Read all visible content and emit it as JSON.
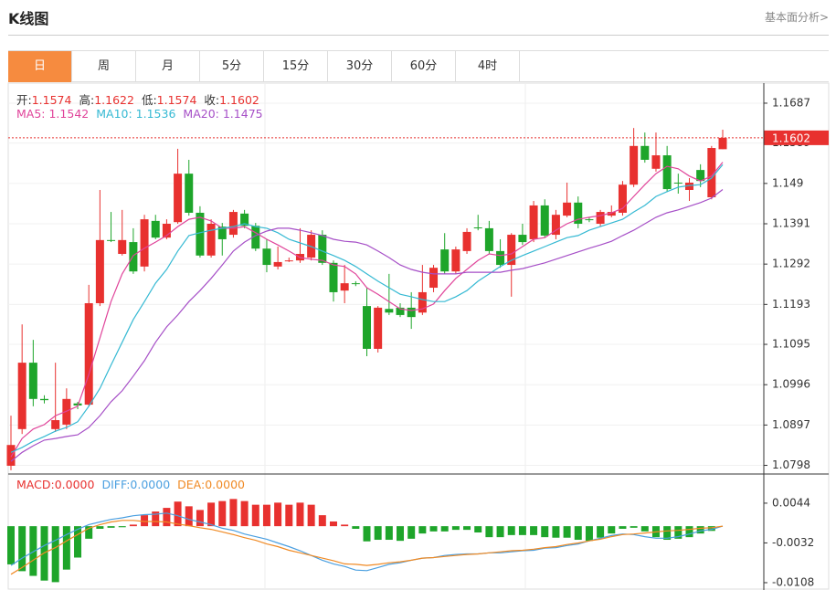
{
  "header": {
    "title": "K线图",
    "link": "基本面分析>"
  },
  "tabs": {
    "items": [
      "日",
      "周",
      "月",
      "5分",
      "15分",
      "30分",
      "60分",
      "4时"
    ],
    "active": 0
  },
  "chart_data": [
    {
      "type": "candlestick",
      "ohlc_labels": {
        "open": "开:",
        "high": "高:",
        "low": "低:",
        "close": "收:"
      },
      "up_color": "#e8312f",
      "down_color": "#1ea52a",
      "candles": {
        "open": [
          1.0797,
          1.0887,
          1.105,
          1.0961,
          1.0887,
          1.0898,
          1.095,
          1.0947,
          1.1196,
          1.1351,
          1.1317,
          1.1346,
          1.1286,
          1.1398,
          1.1357,
          1.1395,
          1.1514,
          1.1418,
          1.1313,
          1.1384,
          1.1364,
          1.1416,
          1.1386,
          1.133,
          1.1286,
          1.1299,
          1.1301,
          1.1308,
          1.1364,
          1.1295,
          1.1227,
          1.1245,
          1.1189,
          1.1084,
          1.1182,
          1.1185,
          1.1185,
          1.1173,
          1.1234,
          1.1328,
          1.1274,
          1.1324,
          1.1382,
          1.138,
          1.1324,
          1.129,
          1.1364,
          1.1353,
          1.1436,
          1.1364,
          1.1411,
          1.1443,
          1.1402,
          1.1391,
          1.1411,
          1.1418,
          1.1487,
          1.1582,
          1.1526,
          1.1559,
          1.1492,
          1.1474,
          1.1523,
          1.1456,
          1.1574
        ],
        "high": [
          1.092,
          1.1144,
          1.1106,
          1.097,
          1.105,
          1.0987,
          1.0954,
          1.1241,
          1.1474,
          1.142,
          1.1425,
          1.138,
          1.1413,
          1.1413,
          1.1402,
          1.1575,
          1.1548,
          1.1434,
          1.1402,
          1.1393,
          1.1425,
          1.1425,
          1.1393,
          1.1353,
          1.1335,
          1.1308,
          1.138,
          1.1375,
          1.1375,
          1.1301,
          1.129,
          1.125,
          1.1234,
          1.1189,
          1.1268,
          1.1196,
          1.1223,
          1.129,
          1.129,
          1.1368,
          1.1335,
          1.138,
          1.1413,
          1.1398,
          1.1353,
          1.1368,
          1.1391,
          1.1447,
          1.1451,
          1.1425,
          1.1492,
          1.1458,
          1.1407,
          1.1425,
          1.1436,
          1.1496,
          1.1626,
          1.1615,
          1.1615,
          1.1582,
          1.1514,
          1.1503,
          1.1537,
          1.1582,
          1.1622
        ],
        "low": [
          1.0786,
          1.0875,
          1.0943,
          1.095,
          1.088,
          1.0887,
          1.0936,
          1.0943,
          1.1189,
          1.1346,
          1.1313,
          1.1268,
          1.1274,
          1.1353,
          1.1353,
          1.1391,
          1.1411,
          1.1308,
          1.1308,
          1.1313,
          1.1357,
          1.138,
          1.1324,
          1.1272,
          1.1279,
          1.1297,
          1.1295,
          1.1301,
          1.129,
          1.12,
          1.1196,
          1.1238,
          1.1066,
          1.1075,
          1.1167,
          1.1162,
          1.1133,
          1.1167,
          1.1223,
          1.1268,
          1.1268,
          1.1317,
          1.1375,
          1.1317,
          1.1283,
          1.1212,
          1.1339,
          1.1346,
          1.1357,
          1.1353,
          1.1407,
          1.138,
          1.1395,
          1.1384,
          1.1407,
          1.1411,
          1.1481,
          1.1541,
          1.1519,
          1.1469,
          1.1465,
          1.1447,
          1.1481,
          1.1451,
          1.1574
        ],
        "close": [
          1.0848,
          1.105,
          1.0961,
          1.0958,
          1.0909,
          1.0961,
          1.0945,
          1.1196,
          1.1351,
          1.1349,
          1.1351,
          1.1274,
          1.1402,
          1.1357,
          1.1391,
          1.1514,
          1.1418,
          1.1313,
          1.1391,
          1.1353,
          1.142,
          1.1386,
          1.133,
          1.129,
          1.1297,
          1.1301,
          1.1317,
          1.1364,
          1.1295,
          1.1223,
          1.1245,
          1.1243,
          1.1084,
          1.1185,
          1.1173,
          1.1167,
          1.1162,
          1.1223,
          1.1283,
          1.1274,
          1.1328,
          1.1371,
          1.138,
          1.1324,
          1.129,
          1.1364,
          1.1346,
          1.1436,
          1.1362,
          1.1413,
          1.1443,
          1.1391,
          1.14,
          1.142,
          1.142,
          1.1487,
          1.1582,
          1.1548,
          1.1559,
          1.1476,
          1.149,
          1.1492,
          1.1496,
          1.1577,
          1.1602
        ]
      },
      "legend_separator": ": ",
      "series": [
        {
          "name": "MA5",
          "color": "#e0449a",
          "values": [
            1.0819,
            1.0864,
            1.0887,
            1.0898,
            1.092,
            1.0931,
            1.0943,
            1.1021,
            1.1111,
            1.12,
            1.1268,
            1.1313,
            1.1331,
            1.1346,
            1.1362,
            1.1384,
            1.1402,
            1.1407,
            1.1398,
            1.138,
            1.138,
            1.1384,
            1.1369,
            1.1353,
            1.1339,
            1.1324,
            1.1308,
            1.1304,
            1.1301,
            1.129,
            1.1286,
            1.1268,
            1.1234,
            1.1218,
            1.12,
            1.1182,
            1.1178,
            1.1182,
            1.1194,
            1.1227,
            1.1257,
            1.1279,
            1.1301,
            1.1317,
            1.1313,
            1.1317,
            1.1335,
            1.1353,
            1.1357,
            1.1375,
            1.1391,
            1.1402,
            1.1407,
            1.1411,
            1.1418,
            1.1429,
            1.1458,
            1.1487,
            1.1514,
            1.1532,
            1.1526,
            1.1508,
            1.1496,
            1.1508,
            1.1542
          ]
        },
        {
          "name": "MA10",
          "color": "#35b9d3",
          "values": [
            1.083,
            1.0842,
            1.0857,
            1.0869,
            1.0882,
            1.0891,
            1.0905,
            1.0943,
            1.0987,
            1.1044,
            1.11,
            1.1156,
            1.12,
            1.1245,
            1.1279,
            1.1324,
            1.1362,
            1.1369,
            1.1375,
            1.138,
            1.1384,
            1.1391,
            1.1384,
            1.138,
            1.1369,
            1.1353,
            1.1344,
            1.1335,
            1.1324,
            1.1313,
            1.1301,
            1.1286,
            1.1268,
            1.125,
            1.1234,
            1.1218,
            1.1212,
            1.1205,
            1.12,
            1.12,
            1.1212,
            1.1227,
            1.125,
            1.1268,
            1.1286,
            1.1301,
            1.1313,
            1.1324,
            1.1335,
            1.1346,
            1.1357,
            1.1362,
            1.1375,
            1.1384,
            1.1393,
            1.1402,
            1.142,
            1.1436,
            1.1458,
            1.147,
            1.1481,
            1.1485,
            1.1487,
            1.1503,
            1.1536
          ]
        },
        {
          "name": "MA20",
          "color": "#a64fc7",
          "values": [
            1.0808,
            1.083,
            1.0846,
            1.086,
            1.0864,
            1.0869,
            1.0873,
            1.0891,
            1.092,
            1.0954,
            1.0981,
            1.1017,
            1.1055,
            1.11,
            1.1138,
            1.1167,
            1.12,
            1.1227,
            1.1257,
            1.129,
            1.1324,
            1.1346,
            1.1362,
            1.1373,
            1.138,
            1.138,
            1.1375,
            1.1369,
            1.1362,
            1.1353,
            1.1348,
            1.1346,
            1.1339,
            1.1324,
            1.1308,
            1.129,
            1.1279,
            1.1272,
            1.1268,
            1.1268,
            1.1268,
            1.1272,
            1.1272,
            1.1272,
            1.1272,
            1.1277,
            1.1281,
            1.1288,
            1.1295,
            1.1304,
            1.1313,
            1.1322,
            1.1331,
            1.1339,
            1.1348,
            1.1362,
            1.1375,
            1.1391,
            1.1407,
            1.1418,
            1.1425,
            1.1434,
            1.1443,
            1.1454,
            1.1475
          ]
        }
      ],
      "ylim": [
        1.0779,
        1.1734
      ],
      "yticks": [
        1.1687,
        1.1589,
        1.149,
        1.1391,
        1.1292,
        1.1193,
        1.1095,
        1.0996,
        1.0897,
        1.0798
      ],
      "grid": true,
      "last_price_line": true
    },
    {
      "type": "macd",
      "up_color": "#e8312f",
      "down_color": "#1ea52a",
      "legend_separator": ":",
      "bars": {
        "name": "MACD",
        "current_label": "0.0000",
        "values": [
          -0.0073,
          -0.0086,
          -0.0095,
          -0.0104,
          -0.0107,
          -0.0083,
          -0.006,
          -0.0024,
          -0.0005,
          -0.0003,
          -0.0002,
          0.0003,
          0.0021,
          0.0028,
          0.0035,
          0.0047,
          0.0038,
          0.0031,
          0.0045,
          0.0048,
          0.0052,
          0.0048,
          0.0041,
          0.0041,
          0.0045,
          0.0041,
          0.0045,
          0.0041,
          0.0021,
          0.0009,
          0.0003,
          -0.0005,
          -0.0029,
          -0.0026,
          -0.0026,
          -0.0028,
          -0.0024,
          -0.0014,
          -0.001,
          -0.001,
          -0.0007,
          -0.0007,
          -0.0012,
          -0.0021,
          -0.0021,
          -0.0017,
          -0.0017,
          -0.0017,
          -0.0021,
          -0.0022,
          -0.0022,
          -0.0026,
          -0.0028,
          -0.0022,
          -0.0014,
          -0.0005,
          -0.0003,
          -0.001,
          -0.0021,
          -0.0026,
          -0.0024,
          -0.0021,
          -0.0014,
          -0.0009,
          0
        ]
      },
      "series": [
        {
          "name": "DIFF",
          "color": "#4a9fe0",
          "current_label": "0.0000",
          "values": [
            -0.0075,
            -0.0061,
            -0.0049,
            -0.0037,
            -0.0027,
            -0.0016,
            -0.0006,
            0.0003,
            0.0008,
            0.0013,
            0.0016,
            0.002,
            0.0022,
            0.0023,
            0.0025,
            0.002,
            0.0013,
            0.0008,
            0.0003,
            -0.0004,
            -0.0008,
            -0.0015,
            -0.002,
            -0.0025,
            -0.0032,
            -0.0039,
            -0.0047,
            -0.0056,
            -0.0065,
            -0.0072,
            -0.0077,
            -0.0084,
            -0.0085,
            -0.0079,
            -0.0073,
            -0.007,
            -0.0065,
            -0.0061,
            -0.006,
            -0.0056,
            -0.0054,
            -0.0053,
            -0.0053,
            -0.0051,
            -0.0051,
            -0.0049,
            -0.0047,
            -0.0046,
            -0.0042,
            -0.0041,
            -0.0037,
            -0.0034,
            -0.0028,
            -0.0023,
            -0.0018,
            -0.0015,
            -0.0016,
            -0.002,
            -0.0023,
            -0.0023,
            -0.002,
            -0.0015,
            -0.0009,
            -0.0006,
            0
          ]
        },
        {
          "name": "DEA",
          "color": "#f08a24",
          "current_label": "0.0000",
          "values": [
            -0.0092,
            -0.0079,
            -0.0065,
            -0.0051,
            -0.0041,
            -0.0028,
            -0.0016,
            -0.0004,
            0.0003,
            0.0008,
            0.0011,
            0.0011,
            0.0009,
            0.0009,
            0.0008,
            0.0004,
            0.0001,
            -0.0003,
            -0.0006,
            -0.0011,
            -0.0016,
            -0.0022,
            -0.0027,
            -0.0034,
            -0.0039,
            -0.0046,
            -0.0051,
            -0.0056,
            -0.0061,
            -0.0066,
            -0.0072,
            -0.0073,
            -0.0075,
            -0.0073,
            -0.007,
            -0.0068,
            -0.0065,
            -0.0061,
            -0.006,
            -0.0058,
            -0.0056,
            -0.0054,
            -0.0053,
            -0.0051,
            -0.0049,
            -0.0047,
            -0.0046,
            -0.0044,
            -0.0041,
            -0.0039,
            -0.0035,
            -0.0032,
            -0.0028,
            -0.0025,
            -0.002,
            -0.0016,
            -0.0015,
            -0.0013,
            -0.0011,
            -0.0009,
            -0.0008,
            -0.0006,
            -0.0004,
            -0.0003,
            0
          ]
        }
      ],
      "ylim": [
        -0.0122,
        0.0098
      ],
      "yticks": [
        0.0044,
        -0.0032,
        -0.0108
      ]
    }
  ]
}
